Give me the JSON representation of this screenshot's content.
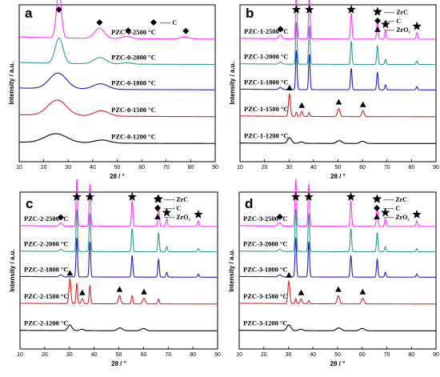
{
  "chart_data": [
    {
      "type": "line",
      "panel": "a",
      "xlabel": "2θ / °",
      "ylabel": "Intensity / a.u.",
      "xlim": [
        10,
        90
      ],
      "xticks": [
        10,
        20,
        30,
        40,
        50,
        60,
        70,
        80,
        90
      ],
      "legend": [
        {
          "marker": "diamond",
          "text": "----- C"
        }
      ],
      "series": [
        {
          "name": "PZC-0-2500 °C",
          "color": "#ff33ff",
          "peaks": [
            [
              26.2,
              1.0,
              1.0
            ],
            [
              42.8,
              0.22,
              2.0
            ],
            [
              54.0,
              0.05,
              1.8
            ],
            [
              77.5,
              0.04,
              2.0
            ]
          ],
          "base": 0.05
        },
        {
          "name": "PZC-0-2000 °C",
          "color": "#2f9a8e",
          "peaks": [
            [
              26.3,
              0.6,
              1.6
            ],
            [
              43.0,
              0.15,
              2.5
            ],
            [
              54.0,
              0.03,
              2.0
            ]
          ],
          "base": 0.05
        },
        {
          "name": "PZC-0-1800 °C",
          "color": "#2020c0",
          "peaks": [
            [
              25.8,
              0.4,
              3.5
            ],
            [
              43.2,
              0.14,
              3.0
            ]
          ],
          "base": 0.05
        },
        {
          "name": "PZC-0-1500 °C",
          "color": "#e02020",
          "peaks": [
            [
              25.5,
              0.38,
              3.8
            ],
            [
              43.5,
              0.13,
              3.0
            ]
          ],
          "base": 0.05
        },
        {
          "name": "PZC-0-1200 °C",
          "color": "#000000",
          "peaks": [
            [
              25.0,
              0.32,
              4.5
            ],
            [
              43.8,
              0.11,
              3.2
            ]
          ],
          "base": 0.05
        }
      ],
      "markers": [
        {
          "type": "diamond",
          "x": 26.2
        },
        {
          "type": "diamond",
          "x": 42.8
        },
        {
          "type": "diamond",
          "x": 54.5
        },
        {
          "type": "diamond",
          "x": 78.0
        }
      ]
    },
    {
      "type": "line",
      "panel": "b",
      "xlabel": "2θ / °",
      "ylabel": "Intensity / a.u.",
      "xlim": [
        10,
        90
      ],
      "xticks": [
        10,
        20,
        30,
        40,
        50,
        60,
        70,
        80,
        90
      ],
      "legend": [
        {
          "marker": "star",
          "text": "----- ZrC"
        },
        {
          "marker": "diamond",
          "text": "----- C"
        },
        {
          "marker": "triangle",
          "text": "----- ZrO₂"
        }
      ],
      "series": [
        {
          "name": "PZC-1-2500 °C",
          "color": "#ff33ff",
          "peaks": [
            [
              26.5,
              0.08,
              0.6
            ],
            [
              33.0,
              1.0,
              0.3
            ],
            [
              38.3,
              0.9,
              0.3
            ],
            [
              55.4,
              0.55,
              0.3
            ],
            [
              66.1,
              0.45,
              0.3
            ],
            [
              69.4,
              0.18,
              0.3
            ],
            [
              82.2,
              0.14,
              0.3
            ]
          ],
          "base": 0.02
        },
        {
          "name": "PZC-1-2000 °C",
          "color": "#2f9a8e",
          "peaks": [
            [
              26.5,
              0.05,
              0.6
            ],
            [
              33.0,
              1.0,
              0.3
            ],
            [
              38.3,
              0.9,
              0.3
            ],
            [
              55.4,
              0.55,
              0.3
            ],
            [
              66.1,
              0.45,
              0.3
            ],
            [
              69.4,
              0.12,
              0.3
            ],
            [
              82.2,
              0.08,
              0.3
            ]
          ],
          "base": 0.02
        },
        {
          "name": "PZC-1-1800 °C",
          "color": "#2020c0",
          "peaks": [
            [
              26.5,
              0.05,
              0.6
            ],
            [
              33.0,
              1.0,
              0.3
            ],
            [
              38.3,
              0.9,
              0.3
            ],
            [
              55.4,
              0.55,
              0.3
            ],
            [
              66.1,
              0.45,
              0.3
            ],
            [
              69.4,
              0.12,
              0.3
            ],
            [
              82.2,
              0.08,
              0.3
            ]
          ],
          "base": 0.02
        },
        {
          "name": "PZC-1-1500 °C",
          "color": "#e02020",
          "peaks": [
            [
              30.2,
              0.55,
              0.4
            ],
            [
              35.2,
              0.12,
              0.4
            ],
            [
              38.2,
              0.1,
              0.3
            ],
            [
              50.3,
              0.2,
              0.5
            ],
            [
              60.2,
              0.14,
              0.5
            ],
            [
              33.0,
              0.1,
              0.3
            ]
          ],
          "base": 0.02
        },
        {
          "name": "PZC-1-1200 °C",
          "color": "#000000",
          "peaks": [
            [
              30.2,
              0.2,
              0.8
            ],
            [
              35.0,
              0.05,
              0.8
            ],
            [
              50.5,
              0.1,
              1.0
            ],
            [
              60.0,
              0.08,
              1.0
            ]
          ],
          "base": 0.02
        }
      ],
      "markers": [
        {
          "type": "star",
          "x": 33.0
        },
        {
          "type": "star",
          "x": 38.3
        },
        {
          "type": "star",
          "x": 55.4
        },
        {
          "type": "star",
          "x": 66.1
        },
        {
          "type": "star",
          "x": 69.4
        },
        {
          "type": "star",
          "x": 82.2
        },
        {
          "type": "diamond",
          "x": 26.5
        },
        {
          "type": "triangle",
          "x": 30.2
        },
        {
          "type": "triangle",
          "x": 35.2
        },
        {
          "type": "triangle",
          "x": 50.3
        },
        {
          "type": "triangle",
          "x": 60.2
        }
      ]
    },
    {
      "type": "line",
      "panel": "c",
      "xlabel": "2θ / °",
      "ylabel": "Intensity / a.u.",
      "xlim": [
        10,
        90
      ],
      "xticks": [
        10,
        20,
        30,
        40,
        50,
        60,
        70,
        80,
        90
      ],
      "legend": [
        {
          "marker": "star",
          "text": "----- ZrC"
        },
        {
          "marker": "diamond",
          "text": "----- C"
        },
        {
          "marker": "triangle",
          "text": "----- ZrO₂"
        }
      ],
      "series": [
        {
          "name": "PZC-2-2500 °C",
          "color": "#ff33ff",
          "peaks": [
            [
              26.5,
              0.06,
              0.6
            ],
            [
              33.0,
              1.0,
              0.3
            ],
            [
              38.3,
              0.9,
              0.3
            ],
            [
              55.4,
              0.55,
              0.3
            ],
            [
              66.1,
              0.45,
              0.3
            ],
            [
              69.4,
              0.16,
              0.3
            ],
            [
              82.2,
              0.12,
              0.3
            ]
          ],
          "base": 0.02
        },
        {
          "name": "PZC-2-2000 °C",
          "color": "#2f9a8e",
          "peaks": [
            [
              26.5,
              0.05,
              0.6
            ],
            [
              33.0,
              1.0,
              0.3
            ],
            [
              38.3,
              0.9,
              0.3
            ],
            [
              55.4,
              0.55,
              0.3
            ],
            [
              66.1,
              0.45,
              0.3
            ],
            [
              69.4,
              0.12,
              0.3
            ],
            [
              82.2,
              0.08,
              0.3
            ]
          ],
          "base": 0.02
        },
        {
          "name": "PZC-2-1800 °C",
          "color": "#2020c0",
          "peaks": [
            [
              26.5,
              0.05,
              0.6
            ],
            [
              33.0,
              1.0,
              0.3
            ],
            [
              38.3,
              0.9,
              0.3
            ],
            [
              55.4,
              0.55,
              0.3
            ],
            [
              66.1,
              0.45,
              0.3
            ],
            [
              69.4,
              0.12,
              0.3
            ],
            [
              82.2,
              0.08,
              0.3
            ]
          ],
          "base": 0.02
        },
        {
          "name": "PZC-2-1500 °C",
          "color": "#e02020",
          "peaks": [
            [
              30.2,
              0.6,
              0.4
            ],
            [
              33.0,
              0.5,
              0.3
            ],
            [
              35.2,
              0.12,
              0.4
            ],
            [
              38.3,
              0.45,
              0.3
            ],
            [
              50.3,
              0.2,
              0.5
            ],
            [
              55.4,
              0.2,
              0.3
            ],
            [
              60.2,
              0.14,
              0.5
            ],
            [
              66.1,
              0.12,
              0.3
            ]
          ],
          "base": 0.02
        },
        {
          "name": "PZC-2-1200 °C",
          "color": "#000000",
          "peaks": [
            [
              30.2,
              0.2,
              0.8
            ],
            [
              35.0,
              0.05,
              0.8
            ],
            [
              50.5,
              0.1,
              1.0
            ],
            [
              60.0,
              0.08,
              1.0
            ]
          ],
          "base": 0.02
        }
      ],
      "markers": [
        {
          "type": "star",
          "x": 33.0
        },
        {
          "type": "star",
          "x": 38.3
        },
        {
          "type": "star",
          "x": 55.4
        },
        {
          "type": "star",
          "x": 66.1
        },
        {
          "type": "star",
          "x": 69.4
        },
        {
          "type": "star",
          "x": 82.2
        },
        {
          "type": "diamond",
          "x": 26.5
        },
        {
          "type": "triangle",
          "x": 30.2
        },
        {
          "type": "triangle",
          "x": 35.2
        },
        {
          "type": "triangle",
          "x": 50.3
        },
        {
          "type": "triangle",
          "x": 60.2
        }
      ]
    },
    {
      "type": "line",
      "panel": "d",
      "xlabel": "2θ / °",
      "ylabel": "Intensity / a.u.",
      "xlim": [
        10,
        90
      ],
      "xticks": [
        10,
        20,
        30,
        40,
        50,
        60,
        70,
        80,
        90
      ],
      "legend": [
        {
          "marker": "star",
          "text": "----- ZrC"
        },
        {
          "marker": "diamond",
          "text": "----- C"
        },
        {
          "marker": "triangle",
          "text": "----- ZrO₂"
        }
      ],
      "series": [
        {
          "name": "PZC-3-2500 °C",
          "color": "#ff33ff",
          "peaks": [
            [
              26.5,
              0.07,
              0.6
            ],
            [
              33.0,
              1.0,
              0.3
            ],
            [
              38.3,
              0.9,
              0.3
            ],
            [
              55.4,
              0.55,
              0.3
            ],
            [
              66.1,
              0.45,
              0.3
            ],
            [
              69.4,
              0.16,
              0.3
            ],
            [
              82.2,
              0.12,
              0.3
            ]
          ],
          "base": 0.02
        },
        {
          "name": "PZC-3-2000 °C",
          "color": "#2f9a8e",
          "peaks": [
            [
              26.5,
              0.05,
              0.6
            ],
            [
              33.0,
              1.0,
              0.3
            ],
            [
              38.3,
              0.9,
              0.3
            ],
            [
              55.4,
              0.55,
              0.3
            ],
            [
              66.1,
              0.45,
              0.3
            ],
            [
              69.4,
              0.12,
              0.3
            ],
            [
              82.2,
              0.08,
              0.3
            ]
          ],
          "base": 0.02
        },
        {
          "name": "PZC-3-1800 °C",
          "color": "#2020c0",
          "peaks": [
            [
              26.5,
              0.05,
              0.6
            ],
            [
              33.0,
              1.0,
              0.3
            ],
            [
              38.3,
              0.9,
              0.3
            ],
            [
              55.4,
              0.55,
              0.3
            ],
            [
              66.1,
              0.45,
              0.3
            ],
            [
              69.4,
              0.12,
              0.3
            ],
            [
              82.2,
              0.08,
              0.3
            ]
          ],
          "base": 0.02
        },
        {
          "name": "PZC-3-1500 °C",
          "color": "#e02020",
          "peaks": [
            [
              30.2,
              0.55,
              0.4
            ],
            [
              33.0,
              0.12,
              0.3
            ],
            [
              35.2,
              0.12,
              0.4
            ],
            [
              38.3,
              0.08,
              0.3
            ],
            [
              50.3,
              0.2,
              0.5
            ],
            [
              60.2,
              0.14,
              0.5
            ]
          ],
          "base": 0.02
        },
        {
          "name": "PZC-3-1200 °C",
          "color": "#000000",
          "peaks": [
            [
              30.2,
              0.2,
              0.8
            ],
            [
              35.0,
              0.05,
              0.8
            ],
            [
              50.5,
              0.1,
              1.0
            ],
            [
              60.0,
              0.08,
              1.0
            ]
          ],
          "base": 0.02
        }
      ],
      "markers": [
        {
          "type": "star",
          "x": 33.0
        },
        {
          "type": "star",
          "x": 38.3
        },
        {
          "type": "star",
          "x": 55.4
        },
        {
          "type": "star",
          "x": 66.1
        },
        {
          "type": "star",
          "x": 69.4
        },
        {
          "type": "star",
          "x": 82.2
        },
        {
          "type": "diamond",
          "x": 26.5
        },
        {
          "type": "triangle",
          "x": 30.2
        },
        {
          "type": "triangle",
          "x": 35.2
        },
        {
          "type": "triangle",
          "x": 50.3
        },
        {
          "type": "triangle",
          "x": 60.2
        }
      ]
    }
  ]
}
